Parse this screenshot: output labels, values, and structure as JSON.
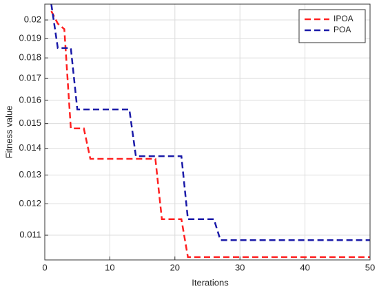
{
  "chart_data": {
    "type": "line",
    "xlabel": "Iterations",
    "ylabel": "Fitness value",
    "x": [
      1,
      2,
      3,
      4,
      5,
      6,
      7,
      8,
      9,
      10,
      11,
      12,
      13,
      14,
      15,
      16,
      17,
      18,
      19,
      20,
      21,
      22,
      23,
      24,
      25,
      26,
      27,
      28,
      29,
      30,
      31,
      32,
      33,
      34,
      35,
      36,
      37,
      38,
      39,
      40,
      41,
      42,
      43,
      44,
      45,
      46,
      47,
      48,
      49,
      50
    ],
    "series": [
      {
        "name": "IPOA",
        "color": "#ff2020",
        "values": [
          0.0205,
          0.0198,
          0.0195,
          0.0148,
          0.0148,
          0.0148,
          0.0136,
          0.0136,
          0.0136,
          0.0136,
          0.0136,
          0.0136,
          0.0136,
          0.0136,
          0.0136,
          0.0136,
          0.0136,
          0.0115,
          0.0115,
          0.0115,
          0.0115,
          0.01035,
          0.01035,
          0.01035,
          0.01035,
          0.01035,
          0.01035,
          0.01035,
          0.01035,
          0.01035,
          0.01035,
          0.01035,
          0.01035,
          0.01035,
          0.01035,
          0.01035,
          0.01035,
          0.01035,
          0.01035,
          0.01035,
          0.01035,
          0.01035,
          0.01035,
          0.01035,
          0.01035,
          0.01035,
          0.01035,
          0.01035,
          0.01035,
          0.01035
        ]
      },
      {
        "name": "POA",
        "color": "#1a1aa8",
        "values": [
          0.0209,
          0.0185,
          0.0185,
          0.0185,
          0.0156,
          0.0156,
          0.0156,
          0.0156,
          0.0156,
          0.0156,
          0.0156,
          0.0156,
          0.0156,
          0.0137,
          0.0137,
          0.0137,
          0.0137,
          0.0137,
          0.0137,
          0.0137,
          0.0137,
          0.0115,
          0.0115,
          0.0115,
          0.0115,
          0.0115,
          0.01085,
          0.01085,
          0.01085,
          0.01085,
          0.01085,
          0.01085,
          0.01085,
          0.01085,
          0.01085,
          0.01085,
          0.01085,
          0.01085,
          0.01085,
          0.01085,
          0.01085,
          0.01085,
          0.01085,
          0.01085,
          0.01085,
          0.01085,
          0.01085,
          0.01085,
          0.01085,
          0.01085
        ]
      }
    ],
    "xlim": [
      0,
      50
    ],
    "xticks": [
      0,
      10,
      20,
      30,
      40,
      50
    ],
    "ylim": [
      0.01027,
      0.0209
    ],
    "yticks": [
      0.011,
      0.012,
      0.013,
      0.014,
      0.015,
      0.016,
      0.017,
      0.018,
      0.019,
      0.02
    ],
    "ylog": true,
    "grid": true,
    "legend": "northeast"
  }
}
